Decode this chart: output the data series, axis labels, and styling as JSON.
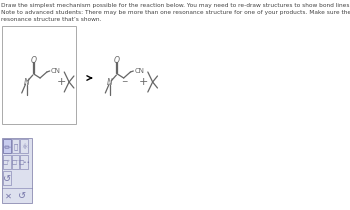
{
  "title_line1": "Draw the simplest mechanism possible for the reaction below. You may need to re-draw structures to show bond lines or lone pairs.",
  "title_line2": "Note to advanced students: There may be more than one resonance structure for one of your products. Make sure the mechanism you draw creates the",
  "title_line3": "resonance structure that’s shown.",
  "lc": "#666666",
  "tc": "#444444",
  "box_color": "#aaaaaa",
  "toolbar_bg": "#dde0ee",
  "toolbar_border": "#9999bb",
  "icon_color": "#7777aa",
  "title_fs": 4.2,
  "mol_lw": 0.9
}
